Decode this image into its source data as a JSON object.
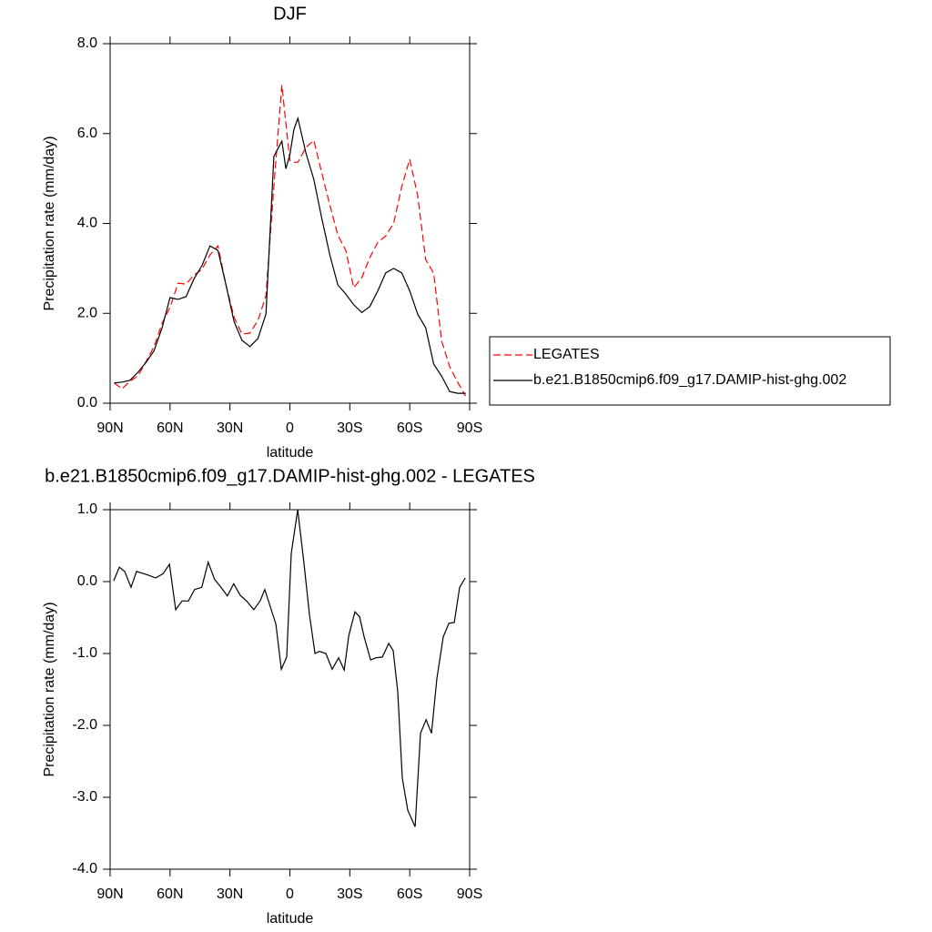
{
  "chart_data": [
    {
      "type": "line",
      "title": "DJF",
      "x_label": "latitude",
      "y_label": "Precipitation rate (mm/day)",
      "x": [
        88,
        84,
        80,
        76,
        72,
        68,
        64,
        60,
        56,
        52,
        48,
        44,
        40,
        36,
        32,
        28,
        24,
        20,
        16,
        12,
        8,
        4,
        2,
        0,
        -2,
        -4,
        -8,
        -12,
        -16,
        -20,
        -24,
        -28,
        -32,
        -36,
        -40,
        -44,
        -48,
        -52,
        -56,
        -60,
        -64,
        -68,
        -72,
        -76,
        -80,
        -84,
        -88
      ],
      "series": [
        {
          "name": "LEGATES",
          "color": "#ff0000",
          "dash": true,
          "values": [
            0.45,
            0.32,
            0.49,
            0.61,
            0.93,
            1.26,
            1.78,
            2.13,
            2.67,
            2.65,
            2.85,
            2.98,
            3.3,
            3.5,
            2.63,
            1.92,
            1.54,
            1.56,
            1.84,
            2.39,
            4.82,
            7.08,
            6.23,
            5.4,
            5.36,
            5.36,
            5.69,
            5.85,
            5.12,
            4.41,
            3.74,
            3.4,
            2.57,
            2.79,
            3.24,
            3.58,
            3.72,
            4.01,
            4.82,
            5.43,
            4.62,
            3.2,
            2.89,
            1.38,
            0.81,
            0.47,
            0.16
          ]
        },
        {
          "name": "b.e21.B1850cmip6.f09_g17.DAMIP-hist-ghg.002",
          "color": "#000000",
          "dash": false,
          "values": [
            0.45,
            0.47,
            0.51,
            0.69,
            0.91,
            1.17,
            1.68,
            2.35,
            2.31,
            2.37,
            2.77,
            3.06,
            3.5,
            3.4,
            2.63,
            1.82,
            1.4,
            1.26,
            1.44,
            1.98,
            5.49,
            5.83,
            5.22,
            5.53,
            6.09,
            6.34,
            5.57,
            4.98,
            4.11,
            3.3,
            2.63,
            2.43,
            2.19,
            2.02,
            2.15,
            2.5,
            2.9,
            3.0,
            2.9,
            2.5,
            1.98,
            1.68,
            0.87,
            0.6,
            0.26,
            0.22,
            0.22
          ]
        }
      ],
      "xlim": [
        90,
        -90
      ],
      "xticks": [
        {
          "value": 90,
          "label": "90N"
        },
        {
          "value": 60,
          "label": "60N"
        },
        {
          "value": 30,
          "label": "30N"
        },
        0,
        {
          "value": -30,
          "label": "30S"
        },
        {
          "value": -60,
          "label": "60S"
        },
        {
          "value": -90,
          "label": "90S"
        }
      ],
      "ylim": [
        0,
        8
      ],
      "yticks": [
        {
          "value": 0,
          "label": "0.0"
        },
        {
          "value": 2,
          "label": "2.0"
        },
        {
          "value": 4,
          "label": "4.0"
        },
        {
          "value": 6,
          "label": "6.0"
        },
        {
          "value": 8,
          "label": "8.0"
        }
      ],
      "legend": "right"
    },
    {
      "type": "line",
      "title": "b.e21.B1850cmip6.f09_g17.DAMIP-hist-ghg.002 - LEGATES",
      "x_label": "latitude",
      "y_label": "Precipitation rate (mm/day)",
      "x": [
        88.2,
        85.4,
        82.7,
        79.5,
        76.8,
        73.1,
        69.9,
        67.2,
        63.5,
        60.3,
        57.2,
        54.0,
        50.8,
        47.7,
        44.1,
        40.9,
        37.7,
        34.5,
        31.3,
        28.1,
        24.9,
        21.7,
        18.1,
        14.9,
        12.6,
        7.0,
        4.3,
        1.6,
        -0.7,
        -3.9,
        -7.1,
        -9.8,
        -12.6,
        -14.8,
        -18.0,
        -21.2,
        -24.4,
        -27.2,
        -29.5,
        -32.6,
        -34.9,
        -37.2,
        -40.4,
        -43.1,
        -46.3,
        -49.5,
        -51.7,
        -54.0,
        -56.3,
        -59.0,
        -62.7,
        -65.4,
        -68.2,
        -70.9,
        -73.6,
        -76.8,
        -79.6,
        -82.3,
        -85.0,
        -87.8
      ],
      "values": [
        0.01,
        0.2,
        0.14,
        -0.08,
        0.14,
        0.11,
        0.08,
        0.05,
        0.11,
        0.24,
        -0.39,
        -0.27,
        -0.27,
        -0.11,
        -0.08,
        0.27,
        0.03,
        -0.08,
        -0.2,
        -0.03,
        -0.19,
        -0.27,
        -0.39,
        -0.27,
        -0.11,
        -0.59,
        -1.22,
        -1.05,
        0.39,
        1.0,
        0.24,
        -0.46,
        -1.0,
        -0.97,
        -1.0,
        -1.22,
        -1.06,
        -1.23,
        -0.75,
        -0.42,
        -0.49,
        -0.77,
        -1.09,
        -1.06,
        -1.05,
        -0.86,
        -0.96,
        -1.53,
        -2.73,
        -3.18,
        -3.41,
        -2.11,
        -1.92,
        -2.11,
        -1.35,
        -0.77,
        -0.58,
        -0.57,
        -0.08,
        0.05
      ],
      "color": "#000000",
      "xlim": [
        90,
        -90
      ],
      "xticks": [
        {
          "value": 90,
          "label": "90N"
        },
        {
          "value": 60,
          "label": "60N"
        },
        {
          "value": 30,
          "label": "30N"
        },
        0,
        {
          "value": -30,
          "label": "30S"
        },
        {
          "value": -60,
          "label": "60S"
        },
        {
          "value": -90,
          "label": "90S"
        }
      ],
      "ylim": [
        -4,
        1
      ],
      "yticks": [
        {
          "value": -4,
          "label": "-4.0"
        },
        {
          "value": -3,
          "label": "-3.0"
        },
        {
          "value": -2,
          "label": "-2.0"
        },
        {
          "value": -1,
          "label": "-1.0"
        },
        {
          "value": 0,
          "label": "0.0"
        },
        {
          "value": 1,
          "label": "1.0"
        }
      ]
    }
  ]
}
